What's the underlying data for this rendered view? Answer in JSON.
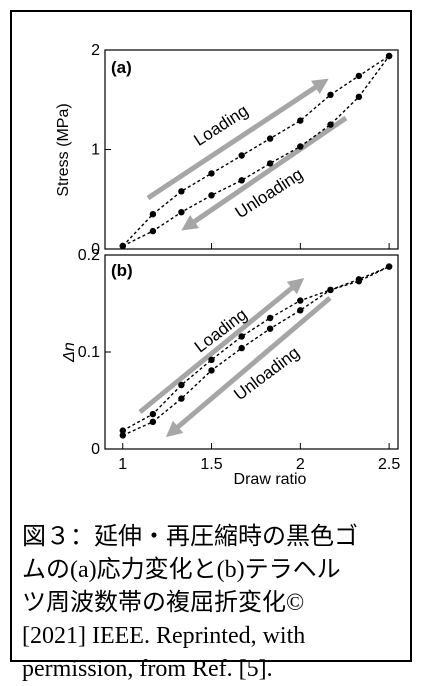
{
  "chart_data": [
    {
      "type": "line",
      "panel_label": "(a)",
      "ylabel": "Stress (MPa)",
      "xlabel": "",
      "xlim": [
        0.9,
        2.55
      ],
      "ylim": [
        0,
        2
      ],
      "yticks": [
        0,
        1,
        2
      ],
      "ytick_labels": [
        "0",
        "1",
        "2"
      ],
      "xticks": [
        1,
        1.5,
        2,
        2.5
      ],
      "show_x_tick_labels": false,
      "grid": false,
      "series": [
        {
          "x": [
            1.0,
            1.17,
            1.33,
            1.5,
            1.67,
            1.83,
            2.0,
            2.17,
            2.33,
            2.5
          ],
          "y": [
            0.03,
            0.35,
            0.58,
            0.76,
            0.94,
            1.11,
            1.29,
            1.55,
            1.74,
            1.94
          ]
        },
        {
          "x": [
            1.0,
            1.17,
            1.33,
            1.5,
            1.67,
            1.83,
            2.0,
            2.17,
            2.33,
            2.5
          ],
          "y": [
            0.03,
            0.18,
            0.37,
            0.54,
            0.69,
            0.86,
            1.03,
            1.25,
            1.53,
            1.94
          ]
        }
      ],
      "annotations": [
        {
          "text": "Loading",
          "direction": "up"
        },
        {
          "text": "Unloading",
          "direction": "down"
        }
      ],
      "arrow_color": "#a6a6a6"
    },
    {
      "type": "line",
      "panel_label": "(b)",
      "ylabel": "Δn",
      "xlabel": "Draw ratio",
      "xlim": [
        0.9,
        2.55
      ],
      "ylim": [
        0,
        0.2
      ],
      "yticks": [
        0,
        0.1,
        0.2
      ],
      "ytick_labels": [
        "0",
        "0.1",
        "0.2"
      ],
      "xticks": [
        1,
        1.5,
        2,
        2.5
      ],
      "xtick_labels": [
        "1",
        "1.5",
        "2",
        "2.5"
      ],
      "grid": false,
      "series": [
        {
          "x": [
            1.0,
            1.17,
            1.33,
            1.5,
            1.67,
            1.83,
            2.0,
            2.17,
            2.33,
            2.5
          ],
          "y": [
            0.019,
            0.036,
            0.066,
            0.092,
            0.116,
            0.135,
            0.153,
            0.164,
            0.175,
            0.188
          ]
        },
        {
          "x": [
            1.0,
            1.17,
            1.33,
            1.5,
            1.67,
            1.83,
            2.0,
            2.17,
            2.33,
            2.5
          ],
          "y": [
            0.014,
            0.028,
            0.052,
            0.081,
            0.104,
            0.124,
            0.143,
            0.164,
            0.173,
            0.188
          ]
        }
      ],
      "annotations": [
        {
          "text": "Loading",
          "direction": "up"
        },
        {
          "text": "Unloading",
          "direction": "down"
        }
      ],
      "arrow_color": "#a6a6a6"
    }
  ],
  "caption": {
    "lines": [
      "図３：延伸・再圧縮時の黒色ゴ",
      "ムの(a)応力変化と(b)テラヘル",
      "ツ周波数帯の複屈折変化©",
      "[2021] IEEE. Reprinted, with",
      "permission, from Ref. [5]."
    ]
  }
}
